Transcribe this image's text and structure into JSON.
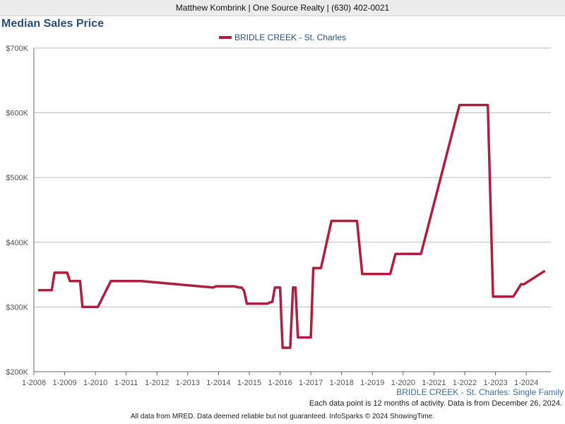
{
  "header": {
    "agent_line": "Matthew Kombrink | One Source Realty | (630) 402-0021"
  },
  "chart_title": "Median Sales Price",
  "legend": {
    "label": "BRIDLE CREEK - St. Charles"
  },
  "subtitle": "BRIDLE CREEK - St. Charles: Single Family",
  "note": "Each data point is 12 months of activity. Data is from December 26, 2024.",
  "footer": "All data from MRED. Data deemed reliable but not guaranteed. InfoSparks © 2024 ShowingTime.",
  "colors": {
    "series": "#ae1e3f",
    "grid": "#bdbdbd",
    "axis": "#666666"
  },
  "chart_data": {
    "type": "line",
    "title": "Median Sales Price",
    "xlabel": "",
    "ylabel": "",
    "xlim": [
      2008.0,
      2024.8
    ],
    "ylim": [
      200000,
      700000
    ],
    "y_ticks": [
      200000,
      300000,
      400000,
      500000,
      600000,
      700000
    ],
    "y_tick_labels": [
      "$200K",
      "$300K",
      "$400K",
      "$500K",
      "$600K",
      "$700K"
    ],
    "x_ticks": [
      2008,
      2009,
      2010,
      2011,
      2012,
      2013,
      2014,
      2015,
      2016,
      2017,
      2018,
      2019,
      2020,
      2021,
      2022,
      2023,
      2024
    ],
    "x_tick_labels": [
      "1-2008",
      "1-2009",
      "1-2010",
      "1-2011",
      "1-2012",
      "1-2013",
      "1-2014",
      "1-2015",
      "1-2016",
      "1-2017",
      "1-2018",
      "1-2019",
      "1-2020",
      "1-2021",
      "1-2022",
      "1-2023",
      "1-2024"
    ],
    "grid": true,
    "legend_position": "top-center",
    "series": [
      {
        "name": "BRIDLE CREEK - St. Charles",
        "color": "#ae1e3f",
        "x": [
          2008.17,
          2008.5,
          2008.58,
          2008.67,
          2009.08,
          2009.17,
          2009.5,
          2009.58,
          2010.08,
          2010.5,
          2011.5,
          2013.83,
          2013.92,
          2014.5,
          2014.67,
          2014.75,
          2014.83,
          2014.92,
          2015.5,
          2015.58,
          2015.67,
          2015.75,
          2015.83,
          2016.0,
          2016.08,
          2016.33,
          2016.42,
          2016.5,
          2016.58,
          2016.67,
          2017.0,
          2017.08,
          2017.33,
          2017.67,
          2018.5,
          2018.67,
          2019.58,
          2019.75,
          2020.58,
          2021.83,
          2022.75,
          2022.92,
          2023.5,
          2023.58,
          2023.83,
          2023.92,
          2024.58
        ],
        "values": [
          326000,
          326000,
          326000,
          353000,
          353000,
          340000,
          340000,
          300000,
          300000,
          340000,
          340000,
          330000,
          332000,
          332000,
          330000,
          330000,
          325000,
          305000,
          305000,
          305000,
          307000,
          308000,
          330000,
          330000,
          237000,
          237000,
          330000,
          330000,
          253000,
          253000,
          253000,
          360000,
          360000,
          433000,
          433000,
          351000,
          351000,
          382000,
          382000,
          612000,
          612000,
          316000,
          316000,
          316000,
          335000,
          335000,
          355000
        ]
      }
    ]
  }
}
